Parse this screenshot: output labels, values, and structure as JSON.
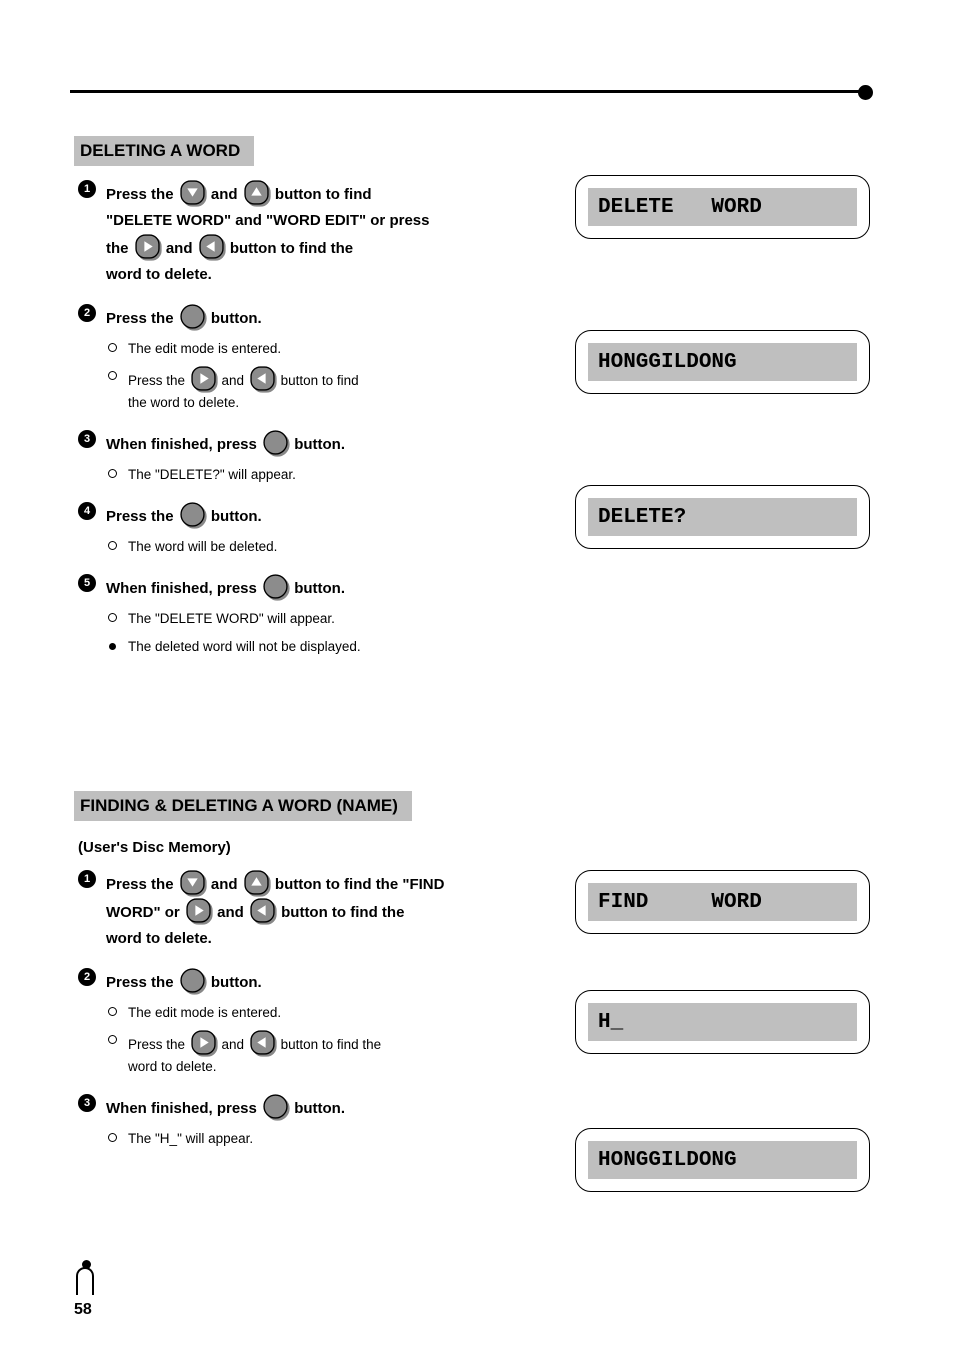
{
  "page_number": "58",
  "header_rule_color": "#000000",
  "colors": {
    "grey": "#bfbfbf",
    "bg": "#ffffff",
    "text": "#000000",
    "shadow": "#888888"
  },
  "section1": {
    "title": "DELETING A WORD",
    "steps": [
      {
        "num": "1",
        "lines": [
          "Press the ",
          {
            "icon": "down"
          },
          " and ",
          {
            "icon": "up"
          },
          " button to find"
        ],
        "lines2": [
          "the ",
          {
            "icon": "right"
          },
          " and ",
          {
            "icon": "left"
          },
          " button to find the"
        ],
        "trail": "\"DELETE WORD\" and \"WORD EDIT\" or press",
        "trail2": "word to delete.",
        "lcd": "DELETE   WORD"
      },
      {
        "num": "2",
        "lines": [
          "Press the ",
          {
            "icon": "ok"
          },
          " button."
        ],
        "subs": [
          {
            "marker": "hollow",
            "text": "The edit mode is entered."
          },
          {
            "marker": "hollow",
            "parts": [
              "Press the ",
              {
                "icon": "right"
              },
              " and ",
              {
                "icon": "left"
              },
              " button to find"
            ],
            "trail": "the word to delete."
          }
        ],
        "lcd": "HONGGILDONG"
      },
      {
        "num": "3",
        "lines": [
          "When finished, press ",
          {
            "icon": "ok"
          },
          " button."
        ],
        "subs": [
          {
            "marker": "hollow",
            "text": "The \"DELETE?\" will appear."
          }
        ],
        "lcd": "DELETE?"
      },
      {
        "num": "4",
        "lines": [
          "Press the ",
          {
            "icon": "ok"
          },
          " button."
        ],
        "subs": [
          {
            "marker": "hollow",
            "text": "The word will be deleted."
          }
        ]
      },
      {
        "num": "5",
        "lines": [
          "When finished, press ",
          {
            "icon": "ok"
          },
          " button."
        ],
        "subs": [
          {
            "marker": "hollow",
            "text": "The \"DELETE WORD\" will appear."
          },
          {
            "marker": "solid",
            "text": "The deleted word will not be displayed."
          }
        ]
      }
    ]
  },
  "section2": {
    "title": "FINDING & DELETING A WORD (NAME)",
    "intro": "(User's Disc Memory)",
    "steps": [
      {
        "num": "1",
        "lines": [
          "Press the ",
          {
            "icon": "down"
          },
          " and ",
          {
            "icon": "up"
          },
          " button to find the \"FIND"
        ],
        "line2parts": [
          "WORD\" or ",
          {
            "icon": "right"
          },
          " and ",
          {
            "icon": "left"
          },
          " button to find the"
        ],
        "trail2": "word to delete.",
        "lcd": "FIND     WORD"
      },
      {
        "num": "2",
        "lines": [
          "Press the ",
          {
            "icon": "ok"
          },
          " button."
        ],
        "subs": [
          {
            "marker": "hollow",
            "text": "The edit mode is entered."
          },
          {
            "marker": "hollow",
            "parts": [
              "Press the ",
              {
                "icon": "right"
              },
              " and ",
              {
                "icon": "left"
              },
              " button to find the"
            ],
            "trail": "word to delete."
          }
        ],
        "lcd": "H_"
      },
      {
        "num": "3",
        "lines": [
          "When finished, press ",
          {
            "icon": "ok"
          },
          " button."
        ],
        "subs": [
          {
            "marker": "hollow",
            "text": "The \"H_\" will appear."
          }
        ],
        "lcd": "HONGGILDONG"
      }
    ]
  },
  "lcd_positions": {
    "s1_1": 175,
    "s1_2": 330,
    "s1_3": 485,
    "s2_1": 870,
    "s2_2": 990,
    "s2_3": 1128
  },
  "icon_labels": {
    "down": "down",
    "up": "up",
    "left": "left",
    "right": "right",
    "ok": "OK"
  }
}
